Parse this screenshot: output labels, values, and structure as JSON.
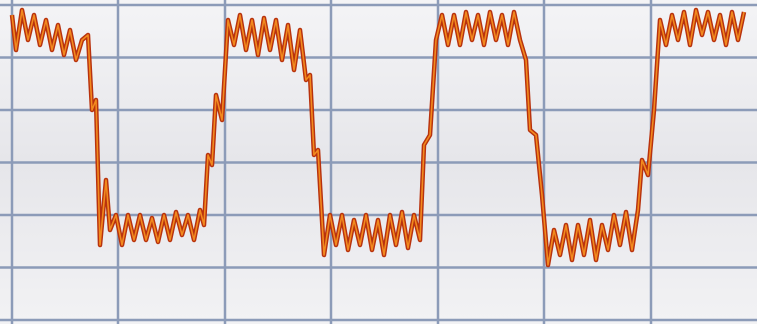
{
  "chart_data": {
    "type": "line",
    "x": [
      0,
      4,
      10,
      16,
      22,
      28,
      34,
      40,
      46,
      52,
      58,
      64,
      70,
      76,
      80,
      84,
      88,
      94,
      98,
      104,
      110,
      116,
      122,
      128,
      134,
      140,
      146,
      152,
      158,
      164,
      170,
      176,
      182,
      188,
      192,
      196,
      200,
      204,
      210,
      216,
      222,
      228,
      234,
      240,
      246,
      252,
      258,
      264,
      270,
      276,
      282,
      288,
      294,
      298,
      302,
      306,
      312,
      318,
      324,
      330,
      336,
      342,
      348,
      354,
      360,
      366,
      372,
      378,
      384,
      390,
      396,
      402,
      408,
      412,
      418,
      424,
      430,
      436,
      442,
      448,
      454,
      460,
      466,
      472,
      478,
      484,
      490,
      496,
      502,
      508,
      514,
      518,
      524,
      530,
      536,
      542,
      548,
      554,
      560,
      566,
      572,
      578,
      584,
      590,
      596,
      602,
      608,
      614,
      620,
      626,
      630,
      636,
      642,
      648,
      654,
      660,
      666,
      672,
      678,
      684,
      690,
      696,
      702,
      708,
      714,
      720,
      726,
      732
    ],
    "series": [
      {
        "color": "#f28a1e",
        "values": [
          305,
          270,
          310,
          280,
          305,
          275,
          300,
          270,
          295,
          265,
          290,
          260,
          280,
          285,
          210,
          220,
          75,
          140,
          90,
          105,
          75,
          105,
          80,
          105,
          80,
          102,
          78,
          105,
          80,
          108,
          85,
          105,
          80,
          110,
          95,
          165,
          155,
          225,
          200,
          300,
          275,
          305,
          270,
          300,
          265,
          302,
          270,
          300,
          260,
          295,
          250,
          290,
          240,
          245,
          165,
          170,
          65,
          105,
          75,
          105,
          70,
          100,
          75,
          105,
          70,
          100,
          65,
          105,
          75,
          108,
          72,
          105,
          80,
          175,
          185,
          280,
          305,
          275,
          305,
          275,
          308,
          280,
          305,
          275,
          308,
          280,
          305,
          275,
          308,
          280,
          260,
          190,
          185,
          125,
          55,
          90,
          65,
          95,
          60,
          95,
          65,
          100,
          60,
          95,
          70,
          105,
          75,
          108,
          70,
          110,
          160,
          145,
          210,
          300,
          275,
          305,
          280,
          308,
          275,
          310,
          285,
          308,
          280,
          305,
          275,
          308,
          280,
          308
        ]
      }
    ],
    "xlim": [
      0,
      745
    ],
    "xticks": [
      0,
      106,
      213,
      319,
      426,
      532,
      639
    ],
    "ylim": [
      0,
      315
    ],
    "yticks": [
      0,
      52.5,
      105,
      157.5,
      210,
      262.5,
      315
    ],
    "grid": true
  }
}
